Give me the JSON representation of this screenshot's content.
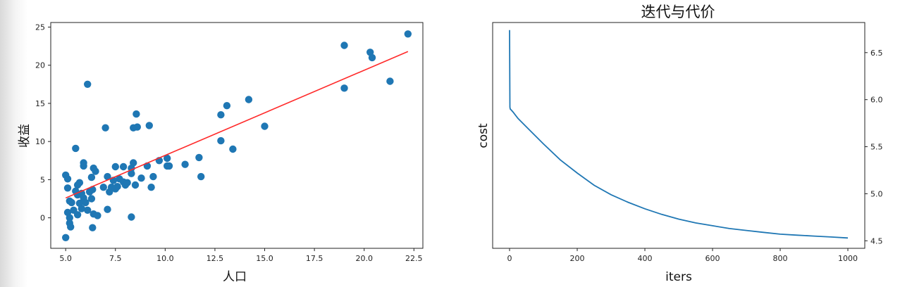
{
  "chart_data": [
    {
      "type": "scatter",
      "xlabel": "人口",
      "ylabel": "收益",
      "title": "",
      "xlim": [
        4.25,
        22.95
      ],
      "ylim": [
        -4.0,
        25.6
      ],
      "xticks": [
        5.0,
        7.5,
        10.0,
        12.5,
        15.0,
        17.5,
        20.0,
        22.5
      ],
      "xtick_labels": [
        "5.0",
        "7.5",
        "10.0",
        "12.5",
        "15.0",
        "17.5",
        "20.0",
        "22.5"
      ],
      "yticks": [
        0,
        5,
        10,
        15,
        20,
        25
      ],
      "ytick_labels": [
        "0",
        "5",
        "10",
        "15",
        "20",
        "25"
      ],
      "grid": false,
      "colors": {
        "points": "#1f77b4",
        "fit_line": "#ff2a2a"
      },
      "points": [
        [
          5.0,
          5.6
        ],
        [
          5.1,
          5.1
        ],
        [
          5.1,
          3.9
        ],
        [
          5.2,
          2.2
        ],
        [
          5.1,
          0.7
        ],
        [
          5.2,
          0.0
        ],
        [
          5.2,
          -0.7
        ],
        [
          5.25,
          -1.2
        ],
        [
          5.0,
          -2.6
        ],
        [
          5.3,
          2.0
        ],
        [
          5.5,
          3.5
        ],
        [
          5.6,
          4.3
        ],
        [
          5.7,
          4.6
        ],
        [
          5.4,
          1.0
        ],
        [
          5.6,
          0.4
        ],
        [
          5.8,
          1.2
        ],
        [
          5.9,
          2.6
        ],
        [
          5.7,
          1.9
        ],
        [
          5.6,
          3.0
        ],
        [
          5.8,
          3.2
        ],
        [
          5.5,
          9.1
        ],
        [
          5.9,
          6.8
        ],
        [
          5.9,
          7.2
        ],
        [
          6.0,
          2.0
        ],
        [
          6.1,
          1.0
        ],
        [
          6.2,
          3.4
        ],
        [
          6.3,
          5.3
        ],
        [
          6.35,
          3.7
        ],
        [
          6.4,
          6.5
        ],
        [
          6.5,
          6.1
        ],
        [
          6.3,
          2.5
        ],
        [
          6.4,
          0.5
        ],
        [
          6.35,
          -1.3
        ],
        [
          6.6,
          0.3
        ],
        [
          6.1,
          17.5
        ],
        [
          6.9,
          4.0
        ],
        [
          7.0,
          11.8
        ],
        [
          7.1,
          1.1
        ],
        [
          7.1,
          5.4
        ],
        [
          7.2,
          3.4
        ],
        [
          7.3,
          4.0
        ],
        [
          7.4,
          4.9
        ],
        [
          7.5,
          6.7
        ],
        [
          7.6,
          4.1
        ],
        [
          7.5,
          3.8
        ],
        [
          7.7,
          5.1
        ],
        [
          7.9,
          6.7
        ],
        [
          8.0,
          4.3
        ],
        [
          7.9,
          4.7
        ],
        [
          8.1,
          4.6
        ],
        [
          8.3,
          6.5
        ],
        [
          8.3,
          5.8
        ],
        [
          8.4,
          7.2
        ],
        [
          8.5,
          4.3
        ],
        [
          8.3,
          0.1
        ],
        [
          8.4,
          11.8
        ],
        [
          8.55,
          13.6
        ],
        [
          8.6,
          11.9
        ],
        [
          8.8,
          5.2
        ],
        [
          9.1,
          6.8
        ],
        [
          9.2,
          12.1
        ],
        [
          9.3,
          4.0
        ],
        [
          9.4,
          5.4
        ],
        [
          9.7,
          7.5
        ],
        [
          10.1,
          7.8
        ],
        [
          10.1,
          6.8
        ],
        [
          10.2,
          6.8
        ],
        [
          11.0,
          7.0
        ],
        [
          11.7,
          7.9
        ],
        [
          11.8,
          5.4
        ],
        [
          12.8,
          13.5
        ],
        [
          12.8,
          10.1
        ],
        [
          13.1,
          14.7
        ],
        [
          13.4,
          9.0
        ],
        [
          14.2,
          15.5
        ],
        [
          15.0,
          12.0
        ],
        [
          19.0,
          22.6
        ],
        [
          19.0,
          17.0
        ],
        [
          20.3,
          21.7
        ],
        [
          20.4,
          21.0
        ],
        [
          21.3,
          17.9
        ],
        [
          22.2,
          24.1
        ]
      ],
      "fit_line": [
        [
          5.0,
          2.6
        ],
        [
          22.2,
          21.8
        ]
      ]
    },
    {
      "type": "line",
      "title": "迭代与代价",
      "xlabel": "iters",
      "ylabel": "cost",
      "xlim": [
        -50,
        1050
      ],
      "ylim": [
        4.42,
        6.82
      ],
      "xticks": [
        0,
        200,
        400,
        600,
        800,
        1000
      ],
      "xtick_labels": [
        "0",
        "200",
        "400",
        "600",
        "800",
        "1000"
      ],
      "yticks": [
        4.5,
        5.0,
        5.5,
        6.0,
        6.5
      ],
      "ytick_labels": [
        "4.5",
        "5.0",
        "5.5",
        "6.0",
        "6.5"
      ],
      "y_axis_side": "right",
      "grid": false,
      "colors": {
        "line": "#1f77b4"
      },
      "series": [
        {
          "x": [
            0,
            1,
            2,
            5,
            10,
            25,
            50,
            75,
            100,
            150,
            200,
            250,
            300,
            350,
            400,
            450,
            500,
            550,
            600,
            650,
            700,
            750,
            800,
            850,
            900,
            950,
            1000
          ],
          "values": [
            6.74,
            5.92,
            5.9,
            5.89,
            5.87,
            5.8,
            5.71,
            5.62,
            5.53,
            5.36,
            5.22,
            5.09,
            4.99,
            4.91,
            4.84,
            4.78,
            4.73,
            4.69,
            4.66,
            4.63,
            4.61,
            4.59,
            4.57,
            4.56,
            4.55,
            4.54,
            4.53
          ]
        }
      ]
    }
  ]
}
